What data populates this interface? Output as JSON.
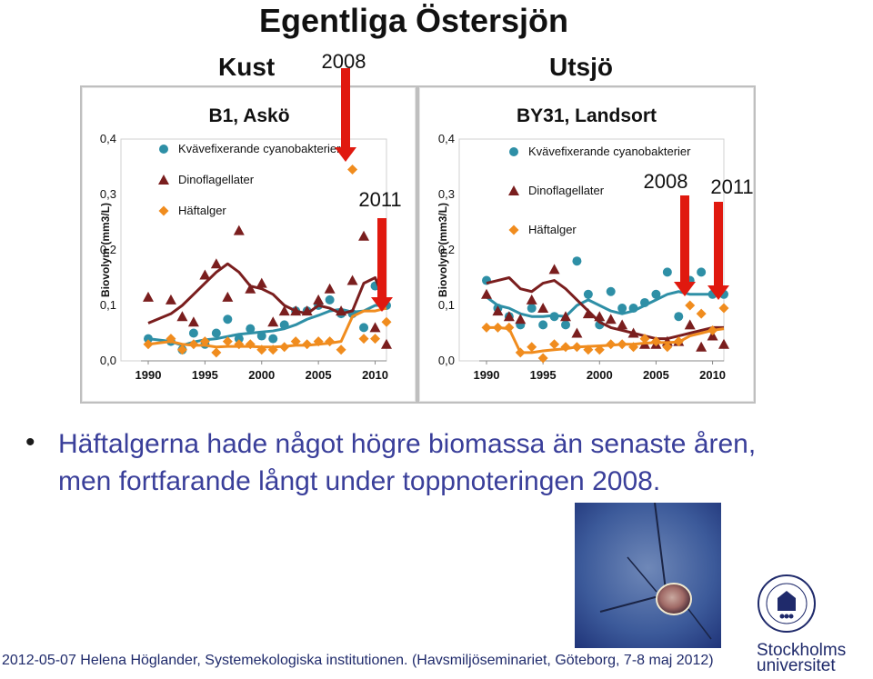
{
  "slide": {
    "title": "Egentliga Östersjön",
    "left_region": "Kust",
    "right_region": "Utsjö",
    "bullet": "Häftalgerna hade något högre biomassa än senaste åren, men fortfarande långt under toppnoteringen 2008.",
    "footer": "2012-05-07 Helena Höglander, Systemekologiska institutionen. (Havsmiljöseminariet, Göteborg, 7-8 maj 2012)",
    "logo_line1": "Stockholms",
    "logo_line2": "universitet",
    "colors": {
      "cyano": "#2e8fa6",
      "dino": "#7a1e1e",
      "haft": "#f08c1e",
      "arrow": "#e0190f",
      "text_blue": "#3a3f9a"
    }
  },
  "chart_data": [
    {
      "type": "scatter",
      "title": "B1, Askö",
      "ylabel": "Biovolym (mm3/L)",
      "ylim": [
        0,
        0.4
      ],
      "yticks": [
        "0,0",
        "0,1",
        "0,2",
        "0,3",
        "0,4"
      ],
      "xlim": [
        1990,
        2011
      ],
      "xticks": [
        1990,
        1995,
        2000,
        2005,
        2010
      ],
      "legend_position": "top-left",
      "annotations": [
        {
          "label": "2008",
          "x": 2008
        },
        {
          "label": "2011",
          "x": 2011
        }
      ],
      "series": [
        {
          "name": "Kvävefixerande cyanobakterier",
          "marker": "circle",
          "x": [
            1990,
            1992,
            1993,
            1994,
            1995,
            1996,
            1997,
            1998,
            1999,
            2000,
            2001,
            2002,
            2003,
            2004,
            2005,
            2006,
            2007,
            2008,
            2009,
            2010,
            2011
          ],
          "points": [
            0.04,
            0.035,
            0.02,
            0.05,
            0.03,
            0.05,
            0.075,
            0.04,
            0.058,
            0.045,
            0.04,
            0.065,
            0.09,
            0.09,
            0.1,
            0.11,
            0.085,
            0.085,
            0.06,
            0.135,
            0.1
          ],
          "line": [
            0.04,
            0.035,
            0.028,
            0.034,
            0.038,
            0.04,
            0.044,
            0.048,
            0.05,
            0.052,
            0.054,
            0.058,
            0.065,
            0.075,
            0.082,
            0.09,
            0.093,
            0.088,
            0.09,
            0.1,
            0.1
          ]
        },
        {
          "name": "Dinoflagellater",
          "marker": "triangle",
          "x": [
            1990,
            1992,
            1993,
            1994,
            1995,
            1996,
            1997,
            1998,
            1999,
            2000,
            2001,
            2002,
            2003,
            2004,
            2005,
            2006,
            2007,
            2008,
            2009,
            2010,
            2011
          ],
          "points": [
            0.115,
            0.11,
            0.08,
            0.07,
            0.155,
            0.175,
            0.115,
            0.235,
            0.13,
            0.14,
            0.07,
            0.09,
            0.09,
            0.09,
            0.11,
            0.13,
            0.09,
            0.145,
            0.225,
            0.06,
            0.03
          ],
          "line": [
            0.068,
            0.085,
            0.1,
            0.12,
            0.14,
            0.16,
            0.175,
            0.16,
            0.135,
            0.13,
            0.12,
            0.1,
            0.09,
            0.085,
            0.1,
            0.095,
            0.085,
            0.09,
            0.14,
            0.15,
            0.1
          ]
        },
        {
          "name": "Häftalger",
          "marker": "diamond",
          "x": [
            1990,
            1992,
            1993,
            1994,
            1995,
            1996,
            1997,
            1998,
            1999,
            2000,
            2001,
            2002,
            2003,
            2004,
            2005,
            2006,
            2007,
            2008,
            2009,
            2010,
            2011
          ],
          "points": [
            0.03,
            0.04,
            0.02,
            0.03,
            0.035,
            0.015,
            0.035,
            0.03,
            0.03,
            0.02,
            0.02,
            0.025,
            0.035,
            0.03,
            0.035,
            0.035,
            0.02,
            0.345,
            0.04,
            0.04,
            0.07
          ],
          "line": [
            0.03,
            0.035,
            0.03,
            0.028,
            0.028,
            0.025,
            0.026,
            0.026,
            0.026,
            0.025,
            0.025,
            0.026,
            0.028,
            0.028,
            0.03,
            0.032,
            0.035,
            0.08,
            0.09,
            0.09,
            0.095
          ]
        }
      ]
    },
    {
      "type": "scatter",
      "title": "BY31, Landsort",
      "ylabel": "Biovolym (mm3/L)",
      "ylim": [
        0,
        0.4
      ],
      "yticks": [
        "0,0",
        "0,1",
        "0,2",
        "0,3",
        "0,4"
      ],
      "xlim": [
        1990,
        2011
      ],
      "xticks": [
        1990,
        1995,
        2000,
        2005,
        2010
      ],
      "legend_position": "top-center",
      "annotations": [
        {
          "label": "2008",
          "x": 2008
        },
        {
          "label": "2011",
          "x": 2011
        }
      ],
      "series": [
        {
          "name": "Kvävefixerande cyanobakterier",
          "marker": "circle",
          "x": [
            1990,
            1991,
            1992,
            1993,
            1994,
            1995,
            1996,
            1997,
            1998,
            1999,
            2000,
            2001,
            2002,
            2003,
            2004,
            2005,
            2006,
            2007,
            2008,
            2009,
            2010,
            2011
          ],
          "points": [
            0.145,
            0.095,
            0.08,
            0.065,
            0.095,
            0.065,
            0.08,
            0.065,
            0.18,
            0.12,
            0.065,
            0.125,
            0.095,
            0.095,
            0.105,
            0.12,
            0.16,
            0.08,
            0.145,
            0.16,
            0.12,
            0.12
          ],
          "line": [
            0.115,
            0.1,
            0.095,
            0.085,
            0.08,
            0.08,
            0.082,
            0.08,
            0.1,
            0.11,
            0.1,
            0.09,
            0.085,
            0.09,
            0.1,
            0.11,
            0.12,
            0.125,
            0.12,
            0.12,
            0.12,
            0.12
          ]
        },
        {
          "name": "Dinoflagellater",
          "marker": "triangle",
          "x": [
            1990,
            1991,
            1992,
            1993,
            1994,
            1995,
            1996,
            1997,
            1998,
            1999,
            2000,
            2001,
            2002,
            2003,
            2004,
            2005,
            2006,
            2007,
            2008,
            2009,
            2010,
            2011
          ],
          "points": [
            0.12,
            0.09,
            0.08,
            0.075,
            0.11,
            0.095,
            0.165,
            0.08,
            0.05,
            0.085,
            0.08,
            0.075,
            0.065,
            0.05,
            0.03,
            0.03,
            0.035,
            0.035,
            0.065,
            0.025,
            0.045,
            0.03
          ],
          "line": [
            0.14,
            0.145,
            0.15,
            0.13,
            0.125,
            0.14,
            0.145,
            0.13,
            0.11,
            0.09,
            0.07,
            0.06,
            0.055,
            0.05,
            0.045,
            0.04,
            0.04,
            0.045,
            0.05,
            0.055,
            0.06,
            0.06
          ]
        },
        {
          "name": "Häftalger",
          "marker": "diamond",
          "x": [
            1990,
            1991,
            1992,
            1993,
            1994,
            1995,
            1996,
            1997,
            1998,
            1999,
            2000,
            2001,
            2002,
            2003,
            2004,
            2005,
            2006,
            2007,
            2008,
            2009,
            2010,
            2011
          ],
          "points": [
            0.06,
            0.06,
            0.06,
            0.015,
            0.025,
            0.005,
            0.03,
            0.025,
            0.025,
            0.02,
            0.02,
            0.03,
            0.03,
            0.025,
            0.04,
            0.035,
            0.025,
            0.035,
            0.1,
            0.085,
            0.055,
            0.095
          ],
          "line": [
            0.06,
            0.06,
            0.058,
            0.015,
            0.015,
            0.018,
            0.02,
            0.022,
            0.025,
            0.026,
            0.027,
            0.028,
            0.03,
            0.03,
            0.032,
            0.033,
            0.033,
            0.034,
            0.045,
            0.05,
            0.055,
            0.058
          ]
        }
      ]
    }
  ]
}
